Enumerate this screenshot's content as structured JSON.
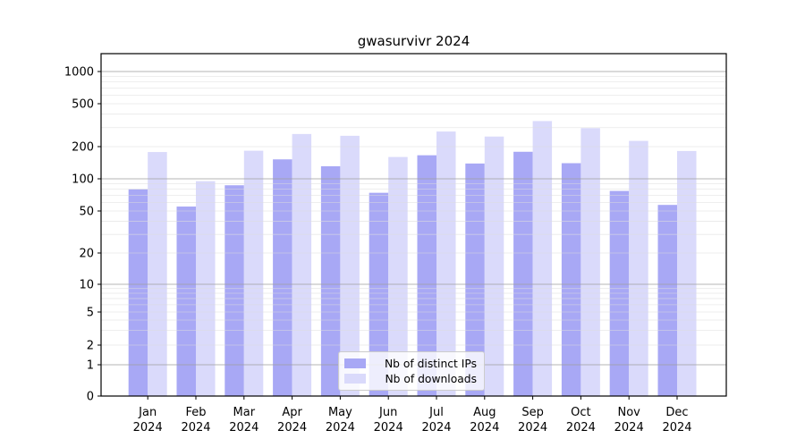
{
  "title": "gwasurvivr 2024",
  "chart_data": {
    "type": "bar",
    "title": "gwasurvivr 2024",
    "categories": [
      "Jan 2024",
      "Feb 2024",
      "Mar 2024",
      "Apr 2024",
      "May 2024",
      "Jun 2024",
      "Jul 2024",
      "Aug 2024",
      "Sep 2024",
      "Oct 2024",
      "Nov 2024",
      "Dec 2024"
    ],
    "month_labels": [
      "Jan",
      "Feb",
      "Mar",
      "Apr",
      "May",
      "Jun",
      "Jul",
      "Aug",
      "Sep",
      "Oct",
      "Nov",
      "Dec"
    ],
    "year_label": "2024",
    "series": [
      {
        "name": "Nb of distinct IPs",
        "color": "#a8a8f5",
        "values": [
          80,
          55,
          87,
          152,
          131,
          74,
          166,
          139,
          179,
          140,
          77,
          57
        ]
      },
      {
        "name": "Nb of downloads",
        "color": "#dadafb",
        "values": [
          178,
          95,
          183,
          262,
          252,
          160,
          276,
          248,
          345,
          297,
          226,
          182
        ]
      }
    ],
    "yscale": "symlog",
    "ytick_values": [
      0,
      1,
      2,
      5,
      10,
      20,
      50,
      100,
      200,
      500,
      1000
    ],
    "ytick_labels": [
      "0",
      "1",
      "2",
      "5",
      "10",
      "20",
      "50",
      "100",
      "200",
      "500",
      "1000"
    ],
    "ylim": [
      0,
      1300
    ],
    "grid": true,
    "legend_position": "lower center"
  },
  "legend": {
    "items": [
      {
        "label": "Nb of distinct IPs",
        "color": "#a8a8f5"
      },
      {
        "label": "Nb of downloads",
        "color": "#dadafb"
      }
    ]
  },
  "colors": {
    "distinct_ips_bar": "#a8a8f5",
    "downloads_bar": "#dadafb",
    "major_gridline": "#9e9e9e",
    "minor_gridline": "#dddddd",
    "axis": "#000000",
    "text": "#000000",
    "legend_border": "#cccccc"
  }
}
